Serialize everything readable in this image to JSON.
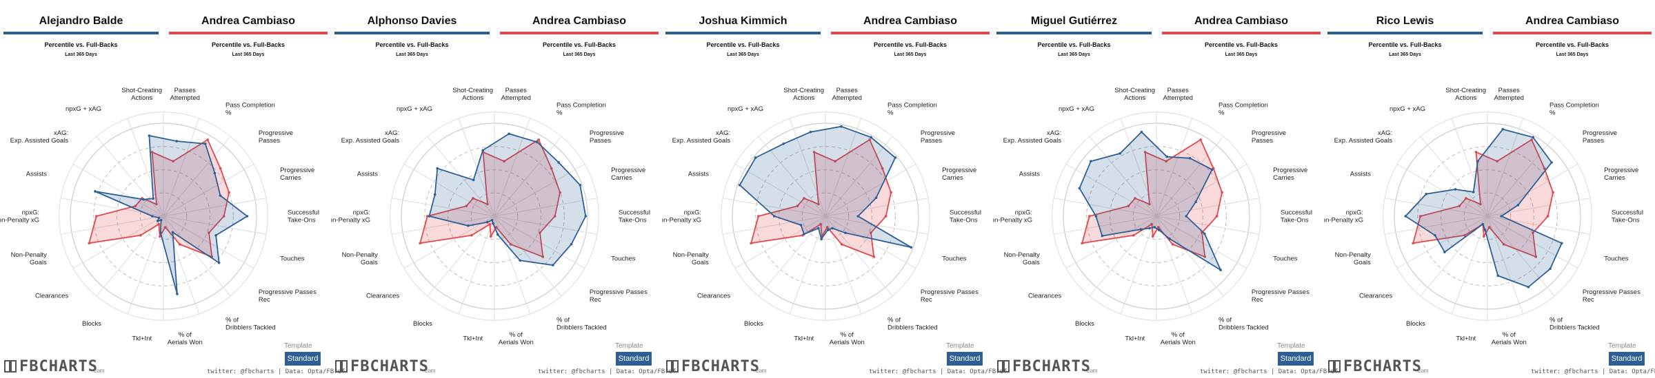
{
  "colors": {
    "primary": "#2d5f96",
    "comparison": "#e0484b"
  },
  "panel_meta": {
    "subtitle": "Percentile vs. Full-Backs",
    "period": "Last 365 Days",
    "template_label": "Template",
    "template_value": "Standard",
    "credit": "twitter: @fbcharts | Data: Opta/FBref",
    "logo_text": "FBCHARTS",
    "logo_suffix": ".com"
  },
  "chart_data": [
    {
      "type": "radar",
      "player": "Alejandro Balde",
      "comparison": "Andrea Cambiaso",
      "axes": [
        "Passes Attempted",
        "Pass Completion %",
        "Progressive Passes",
        "Progressive Carries",
        "Successful Take-Ons",
        "Touches",
        "Progressive Passes Rec",
        "% of Dribblers Tackled",
        "% of Aerials Won",
        "Tkl+Int",
        "Blocks",
        "Clearances",
        "Non-Penalty Goals",
        "npxG: Non-Penalty xG",
        "Assists",
        "xAG: Exp. Assisted Goals",
        "npxG + xAG",
        "Shot-Creating Actions"
      ],
      "series": [
        {
          "name": "Alejandro Balde",
          "values": [
            82,
            90,
            72,
            65,
            90,
            60,
            78,
            20,
            85,
            18,
            5,
            8,
            5,
            12,
            78,
            28,
            22,
            88
          ]
        },
        {
          "name": "Andrea Cambiaso",
          "values": [
            60,
            95,
            80,
            75,
            65,
            52,
            68,
            35,
            12,
            22,
            10,
            32,
            85,
            72,
            32,
            30,
            15,
            70
          ]
        }
      ]
    },
    {
      "type": "radar",
      "player": "Alphonso Davies",
      "comparison": "Andrea Cambiaso",
      "axes": [
        "Passes Attempted",
        "Pass Completion %",
        "Progressive Passes",
        "Progressive Carries",
        "Successful Take-Ons",
        "Touches",
        "Progressive Passes Rec",
        "% of Dribblers Tackled",
        "% of Aerials Won",
        "Tkl+Int",
        "Blocks",
        "Clearances",
        "Non-Penalty Goals",
        "npxG: Non-Penalty xG",
        "Assists",
        "xAG: Exp. Assisted Goals",
        "npxG + xAG",
        "Shot-Creating Actions"
      ],
      "series": [
        {
          "name": "Alphonso Davies",
          "values": [
            90,
            92,
            90,
            98,
            98,
            88,
            82,
            55,
            20,
            8,
            5,
            10,
            30,
            70,
            68,
            80,
            45,
            72
          ]
        },
        {
          "name": "Andrea Cambiaso",
          "values": [
            60,
            95,
            80,
            75,
            65,
            52,
            68,
            35,
            12,
            22,
            10,
            32,
            85,
            72,
            32,
            30,
            15,
            70
          ]
        }
      ]
    },
    {
      "type": "radar",
      "player": "Joshua Kimmich",
      "comparison": "Andrea Cambiaso",
      "axes": [
        "Passes Attempted",
        "Pass Completion %",
        "Progressive Passes",
        "Progressive Carries",
        "Successful Take-Ons",
        "Touches",
        "Progressive Passes Rec",
        "% of Dribblers Tackled",
        "% of Aerials Won",
        "Tkl+Int",
        "Blocks",
        "Clearances",
        "Non-Penalty Goals",
        "npxG: Non-Penalty xG",
        "Assists",
        "xAG: Exp. Assisted Goals",
        "npxG + xAG",
        "Shot-Creating Actions"
      ],
      "series": [
        {
          "name": "Joshua Kimmich",
          "values": [
            98,
            98,
            98,
            58,
            35,
            98,
            28,
            15,
            15,
            25,
            15,
            30,
            28,
            55,
            98,
            98,
            90,
            92
          ]
        },
        {
          "name": "Andrea Cambiaso",
          "values": [
            60,
            95,
            80,
            75,
            65,
            52,
            68,
            35,
            12,
            22,
            10,
            32,
            85,
            72,
            32,
            30,
            15,
            70
          ]
        }
      ]
    },
    {
      "type": "radar",
      "player": "Miguel Gutiérrez",
      "comparison": "Andrea Cambiaso",
      "axes": [
        "Passes Attempted",
        "Pass Completion %",
        "Progressive Passes",
        "Progressive Carries",
        "Successful Take-Ons",
        "Touches",
        "Progressive Passes Rec",
        "% of Dribblers Tackled",
        "% of Aerials Won",
        "Tkl+Int",
        "Blocks",
        "Clearances",
        "Non-Penalty Goals",
        "npxG: Non-Penalty xG",
        "Assists",
        "xAG: Exp. Assisted Goals",
        "npxG + xAG",
        "Shot-Creating Actions"
      ],
      "series": [
        {
          "name": "Miguel Gutiérrez",
          "values": [
            65,
            72,
            78,
            45,
            32,
            55,
            90,
            28,
            15,
            12,
            15,
            22,
            62,
            65,
            88,
            92,
            78,
            92
          ]
        },
        {
          "name": "Andrea Cambiaso",
          "values": [
            60,
            95,
            80,
            75,
            65,
            52,
            68,
            35,
            12,
            22,
            10,
            32,
            85,
            72,
            32,
            30,
            15,
            70
          ]
        }
      ]
    },
    {
      "type": "radar",
      "player": "Rico Lewis",
      "comparison": "Andrea Cambiaso",
      "axes": [
        "Passes Attempted",
        "Pass Completion %",
        "Progressive Passes",
        "Progressive Carries",
        "Successful Take-Ons",
        "Touches",
        "Progressive Passes Rec",
        "% of Dribblers Tackled",
        "% of Aerials Won",
        "Tkl+Int",
        "Blocks",
        "Clearances",
        "Non-Penalty Goals",
        "npxG: Non-Penalty xG",
        "Assists",
        "xAG: Exp. Assisted Goals",
        "npxG + xAG",
        "Shot-Creating Actions"
      ],
      "series": [
        {
          "name": "Rico Lewis",
          "values": [
            95,
            98,
            90,
            35,
            15,
            85,
            88,
            88,
            65,
            15,
            10,
            60,
            60,
            88,
            70,
            45,
            30,
            60
          ]
        },
        {
          "name": "Andrea Cambiaso",
          "values": [
            60,
            95,
            80,
            75,
            65,
            52,
            68,
            35,
            12,
            22,
            10,
            32,
            85,
            72,
            32,
            30,
            15,
            70
          ]
        }
      ]
    }
  ]
}
